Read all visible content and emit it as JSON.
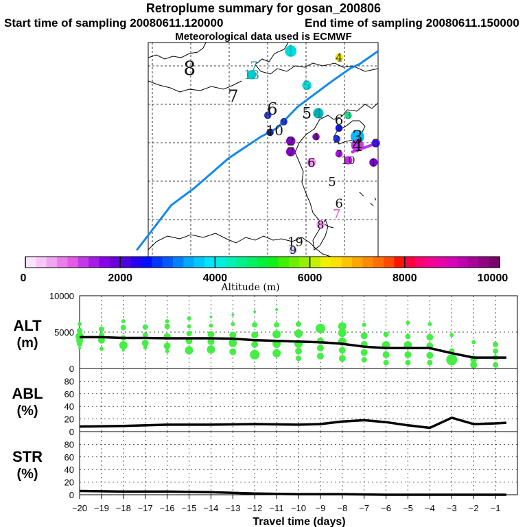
{
  "header": {
    "title": "Retroplume summary for gosan_200806",
    "start": "Start time of sampling 20080611.120000",
    "end": "End time of sampling 20080611.150000",
    "met": "Meteorological data used is ECMWF"
  },
  "chart_data": [
    {
      "type": "map",
      "title": "Retroplume trajectory map",
      "trajectory": [
        [
          -5,
          3
        ],
        [
          10,
          24
        ],
        [
          20,
          32
        ],
        [
          35,
          46
        ],
        [
          49,
          56
        ],
        [
          56,
          60
        ],
        [
          65,
          70
        ],
        [
          80,
          82
        ],
        [
          88,
          88
        ],
        [
          92,
          90
        ],
        [
          100,
          96
        ]
      ],
      "labels": [
        {
          "text": "1",
          "x": 62,
          "y": 96,
          "size": 22,
          "color": "#11bbbb",
          "dot": "#00dddd"
        },
        {
          "text": "4",
          "x": 83,
          "y": 93,
          "size": 16,
          "color": "#222222",
          "dot": "#f5f500"
        },
        {
          "text": "8",
          "x": 18,
          "y": 88,
          "size": 28,
          "color": "#111111"
        },
        {
          "text": "7",
          "x": 46,
          "y": 89,
          "size": 18,
          "color": "#229999"
        },
        {
          "text": "13",
          "x": 45,
          "y": 85,
          "size": 18,
          "color": "#229999",
          "dot": "#00cccc"
        },
        {
          "text": "5",
          "x": 69,
          "y": 80,
          "size": 18,
          "color": "#229999",
          "dot": "#00dddd"
        },
        {
          "text": "7",
          "x": 37,
          "y": 75,
          "size": 24,
          "color": "#111111"
        },
        {
          "text": "6",
          "x": 54,
          "y": 69,
          "size": 24,
          "color": "#111111"
        },
        {
          "text": "8",
          "x": 52,
          "y": 66,
          "size": 14,
          "color": "#222222",
          "dot": "#3344ff"
        },
        {
          "text": "5",
          "x": 69,
          "y": 67,
          "size": 22,
          "color": "#111111"
        },
        {
          "text": "4",
          "x": 74,
          "y": 67,
          "size": 20,
          "color": "#118888",
          "dot": "#00bbbb"
        },
        {
          "text": "3",
          "x": 87,
          "y": 66,
          "size": 14,
          "color": "#118866",
          "dot": "#22dd88"
        },
        {
          "text": "6",
          "x": 83,
          "y": 64,
          "size": 20,
          "color": "#111111"
        },
        {
          "text": "9",
          "x": 59,
          "y": 63,
          "size": 14,
          "color": "#222222",
          "dot": "#2244ff"
        },
        {
          "text": "10",
          "x": 55,
          "y": 59,
          "size": 20,
          "color": "#111111"
        },
        {
          "text": "6",
          "x": 53,
          "y": 58,
          "size": 14,
          "color": "#222222",
          "dot": "#2222cc"
        },
        {
          "text": "2",
          "x": 83,
          "y": 60,
          "size": 14,
          "color": "#222222",
          "dot": "#1111ff"
        },
        {
          "text": "4",
          "x": 73,
          "y": 56,
          "size": 14,
          "color": "#222222",
          "dot": "#9900dd"
        },
        {
          "text": "2",
          "x": 82,
          "y": 55,
          "size": 14,
          "color": "#222222",
          "dot": "#2233ff"
        },
        {
          "text": "3",
          "x": 91,
          "y": 56,
          "size": 26,
          "color": "#222222",
          "dot": "#00bbff"
        },
        {
          "text": "4",
          "x": 91,
          "y": 52,
          "size": 24,
          "color": "#111111",
          "dot": "#cc33ee"
        },
        {
          "text": "5",
          "x": 99,
          "y": 53,
          "size": 16,
          "color": "#222222",
          "dot": "#4411ff"
        },
        {
          "text": "2",
          "x": 62,
          "y": 54,
          "size": 18,
          "color": "#222222",
          "dot": "#8800cc"
        },
        {
          "text": "7",
          "x": 62,
          "y": 49,
          "size": 18,
          "color": "#222222",
          "dot": "#8800cc"
        },
        {
          "text": "7",
          "x": 83,
          "y": 48,
          "size": 14,
          "color": "#222222",
          "dot": "#aa11dd"
        },
        {
          "text": "10",
          "x": 87,
          "y": 45,
          "size": 16,
          "color": "#222222",
          "dot": "#cc22ee"
        },
        {
          "text": "6",
          "x": 71,
          "y": 44,
          "size": 18,
          "color": "#111111",
          "dot": "#ee99ee"
        },
        {
          "text": "1",
          "x": 98,
          "y": 44,
          "size": 16,
          "color": "#111111",
          "dot": "#7700cc"
        },
        {
          "text": "5",
          "x": 80,
          "y": 35,
          "size": 18,
          "color": "#111111"
        },
        {
          "text": "6",
          "x": 83,
          "y": 25,
          "size": 18,
          "color": "#111111"
        },
        {
          "text": "7",
          "x": 82,
          "y": 20,
          "size": 18,
          "color": "#dd55bb"
        },
        {
          "text": "8",
          "x": 75,
          "y": 15,
          "size": 16,
          "color": "#111111",
          "dot": "#ff99ff"
        },
        {
          "text": "19",
          "x": 64,
          "y": 7,
          "size": 18,
          "color": "#111111"
        },
        {
          "text": "9",
          "x": 63,
          "y": 3,
          "size": 16,
          "color": "#111111",
          "dot": "#ccccff"
        }
      ]
    },
    {
      "type": "colorbar",
      "xlabel": "Altitude (m)",
      "range": [
        0,
        10000
      ],
      "ticks": [
        0,
        2000,
        4000,
        6000,
        8000,
        10000
      ],
      "colors": [
        "#fbe4fb",
        "#f7c8f7",
        "#f2a4f2",
        "#ec7eec",
        "#e35ae6",
        "#c438e8",
        "#a51ce6",
        "#8a00e6",
        "#6a00dc",
        "#4d00e0",
        "#2400f0",
        "#0010ff",
        "#0036ff",
        "#005cff",
        "#0082ff",
        "#00a8ff",
        "#00c8ff",
        "#00e4ff",
        "#00f0e0",
        "#00f0b8",
        "#00f090",
        "#00f068",
        "#00f040",
        "#10f018",
        "#40f000",
        "#6cf000",
        "#98f000",
        "#c4f000",
        "#f0f000",
        "#ffe000",
        "#ffc400",
        "#ffa800",
        "#ff8c00",
        "#ff6e00",
        "#ff4a00",
        "#ff1200",
        "#ff0040",
        "#ff0070",
        "#f50090",
        "#e800a8",
        "#d800b8",
        "#c000b0",
        "#a80098",
        "#900080",
        "#780068"
      ]
    },
    {
      "type": "line",
      "title": "ALT",
      "ylabel": "(m)",
      "ylim": [
        0,
        10000
      ],
      "yticks": [
        0,
        5000,
        10000
      ],
      "x": [
        -20,
        -19,
        -18,
        -17,
        -16,
        -15,
        -14,
        -13,
        -12,
        -11,
        -10,
        -9,
        -8,
        -7,
        -6,
        -5,
        -4,
        -3,
        -2,
        -1,
        -0.5
      ],
      "values": [
        4300,
        4300,
        4200,
        4200,
        4150,
        4150,
        4150,
        4100,
        3900,
        3800,
        3700,
        3600,
        3400,
        3000,
        2800,
        2800,
        2800,
        2100,
        1500,
        1500,
        1500
      ],
      "scatter_color": "#44ee44",
      "scatter": [
        [
          -20,
          3800,
          5
        ],
        [
          -20,
          4400,
          6
        ],
        [
          -20,
          5200,
          4
        ],
        [
          -20,
          6100,
          3
        ],
        [
          -20,
          3400,
          4
        ],
        [
          -20,
          2800,
          2
        ],
        [
          -19,
          3900,
          5
        ],
        [
          -19,
          4600,
          4
        ],
        [
          -19,
          5400,
          4
        ],
        [
          -19,
          2700,
          3
        ],
        [
          -18,
          3200,
          6
        ],
        [
          -18,
          4200,
          4
        ],
        [
          -18,
          5600,
          4
        ],
        [
          -18,
          2500,
          2
        ],
        [
          -18,
          6500,
          3
        ],
        [
          -17,
          3500,
          5
        ],
        [
          -17,
          4600,
          4
        ],
        [
          -17,
          5700,
          4
        ],
        [
          -17,
          2900,
          3
        ],
        [
          -16,
          3100,
          5
        ],
        [
          -16,
          4400,
          5
        ],
        [
          -16,
          5800,
          4
        ],
        [
          -16,
          2400,
          3
        ],
        [
          -16,
          6500,
          3
        ],
        [
          -15,
          2500,
          6
        ],
        [
          -15,
          3800,
          5
        ],
        [
          -15,
          4800,
          4
        ],
        [
          -15,
          5800,
          3
        ],
        [
          -15,
          6900,
          3
        ],
        [
          -14,
          2600,
          6
        ],
        [
          -14,
          3700,
          5
        ],
        [
          -14,
          4700,
          5
        ],
        [
          -14,
          5900,
          3
        ],
        [
          -14,
          7100,
          2
        ],
        [
          -13,
          2300,
          5
        ],
        [
          -13,
          3500,
          6
        ],
        [
          -13,
          4600,
          5
        ],
        [
          -13,
          6100,
          3
        ],
        [
          -13,
          7400,
          2
        ],
        [
          -12,
          1900,
          7
        ],
        [
          -12,
          3300,
          5
        ],
        [
          -12,
          4600,
          5
        ],
        [
          -12,
          6000,
          4
        ],
        [
          -12,
          7800,
          2
        ],
        [
          -11,
          2100,
          6
        ],
        [
          -11,
          3400,
          6
        ],
        [
          -11,
          4700,
          6
        ],
        [
          -11,
          6000,
          4
        ],
        [
          -11,
          8100,
          2
        ],
        [
          -10,
          1400,
          4
        ],
        [
          -10,
          2400,
          5
        ],
        [
          -10,
          3400,
          6
        ],
        [
          -10,
          4800,
          6
        ],
        [
          -10,
          6100,
          4
        ],
        [
          -9,
          1700,
          5
        ],
        [
          -9,
          2800,
          5
        ],
        [
          -9,
          3800,
          5
        ],
        [
          -9,
          5500,
          7
        ],
        [
          -8,
          1400,
          5
        ],
        [
          -8,
          2500,
          5
        ],
        [
          -8,
          3700,
          6
        ],
        [
          -8,
          4900,
          6
        ],
        [
          -8,
          5800,
          6
        ],
        [
          -7,
          1200,
          4
        ],
        [
          -7,
          2200,
          5
        ],
        [
          -7,
          3300,
          5
        ],
        [
          -7,
          4500,
          5
        ],
        [
          -7,
          6000,
          3
        ],
        [
          -6,
          800,
          4
        ],
        [
          -6,
          1900,
          5
        ],
        [
          -6,
          3200,
          6
        ],
        [
          -6,
          4700,
          4
        ],
        [
          -5,
          800,
          4
        ],
        [
          -5,
          1900,
          5
        ],
        [
          -5,
          3200,
          6
        ],
        [
          -5,
          4400,
          4
        ],
        [
          -5,
          6300,
          3
        ],
        [
          -4,
          800,
          4
        ],
        [
          -4,
          1800,
          5
        ],
        [
          -4,
          3100,
          5
        ],
        [
          -4,
          4300,
          5
        ],
        [
          -4,
          6100,
          3
        ],
        [
          -3,
          1200,
          8
        ],
        [
          -3,
          2400,
          4
        ],
        [
          -3,
          4600,
          3
        ],
        [
          -2,
          500,
          5
        ],
        [
          -2,
          1300,
          5
        ],
        [
          -2,
          3600,
          3
        ],
        [
          -1,
          500,
          4
        ],
        [
          -1,
          1500,
          4
        ],
        [
          -1,
          2400,
          4
        ],
        [
          -1,
          3300,
          4
        ]
      ]
    },
    {
      "type": "line",
      "title": "ABL",
      "ylabel": "(%)",
      "ylim": [
        0,
        100
      ],
      "yticks": [
        0,
        20,
        40,
        60,
        80
      ],
      "x": [
        -20,
        -18,
        -16,
        -14,
        -12,
        -10,
        -9,
        -8,
        -7,
        -6,
        -5,
        -4,
        -3,
        -2,
        -1,
        -0.5
      ],
      "values": [
        8,
        9,
        11,
        11,
        12,
        11,
        12,
        16,
        18,
        15,
        10,
        6,
        22,
        12,
        13,
        14
      ]
    },
    {
      "type": "line",
      "title": "STR",
      "ylabel": "(%)",
      "ylim": [
        0,
        100
      ],
      "yticks": [
        0,
        20,
        40,
        60,
        80
      ],
      "x": [
        -20,
        -18,
        -16,
        -14,
        -13,
        -12,
        -10,
        -8,
        -6,
        -4,
        -2,
        -1,
        -0.5
      ],
      "values": [
        6,
        5,
        5,
        4,
        3,
        2,
        1,
        1,
        0,
        0,
        0,
        0,
        0
      ],
      "xlabel": "Travel time (days)",
      "xticks": [
        -20,
        -19,
        -18,
        -17,
        -16,
        -15,
        -14,
        -13,
        -12,
        -11,
        -10,
        -9,
        -8,
        -7,
        -6,
        -5,
        -4,
        -3,
        -2,
        -1
      ],
      "xlim": [
        -20,
        0
      ]
    }
  ]
}
